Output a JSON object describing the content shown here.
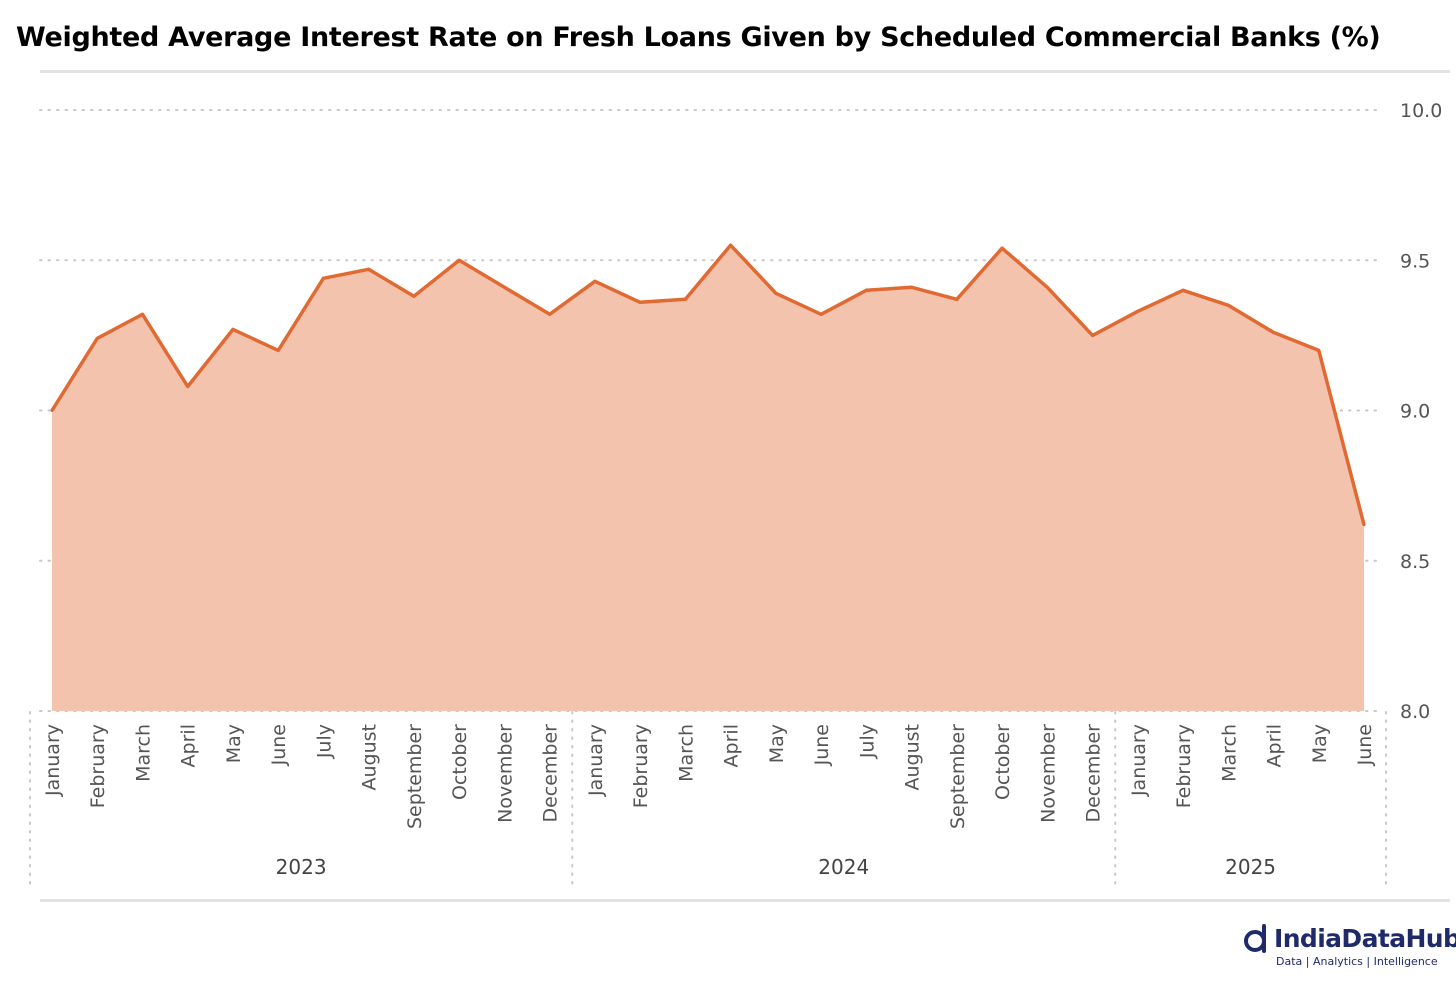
{
  "title": "Weighted Average Interest Rate on Fresh Loans Given by Scheduled Commercial Banks (%)",
  "branding": {
    "name": "IndiaDataHub",
    "tagline": "Data | Analytics | Intelligence"
  },
  "colors": {
    "line": "#e06a32",
    "fill": "#f4c3ae",
    "grid": "#c8c8c8"
  },
  "chart_data": {
    "type": "area",
    "x": [
      "January",
      "February",
      "March",
      "April",
      "May",
      "June",
      "July",
      "August",
      "September",
      "October",
      "November",
      "December",
      "January",
      "February",
      "March",
      "April",
      "May",
      "June",
      "July",
      "August",
      "September",
      "October",
      "November",
      "December",
      "January",
      "February",
      "March",
      "April",
      "May",
      "June"
    ],
    "groups": [
      {
        "label": "2023",
        "count": 12
      },
      {
        "label": "2024",
        "count": 12
      },
      {
        "label": "2025",
        "count": 6
      }
    ],
    "series": [
      {
        "values": [
          9.0,
          9.24,
          9.32,
          9.08,
          9.27,
          9.2,
          9.44,
          9.47,
          9.38,
          9.5,
          9.41,
          9.32,
          9.43,
          9.36,
          9.37,
          9.55,
          9.39,
          9.32,
          9.4,
          9.41,
          9.37,
          9.54,
          9.41,
          9.25,
          9.33,
          9.4,
          9.35,
          9.26,
          9.2,
          8.62
        ]
      }
    ],
    "y_ticks": [
      "8.0",
      "8.5",
      "9.0",
      "9.5",
      "10.0"
    ],
    "ylim": [
      8.0,
      10.0
    ],
    "grid": true,
    "legend": "none"
  }
}
